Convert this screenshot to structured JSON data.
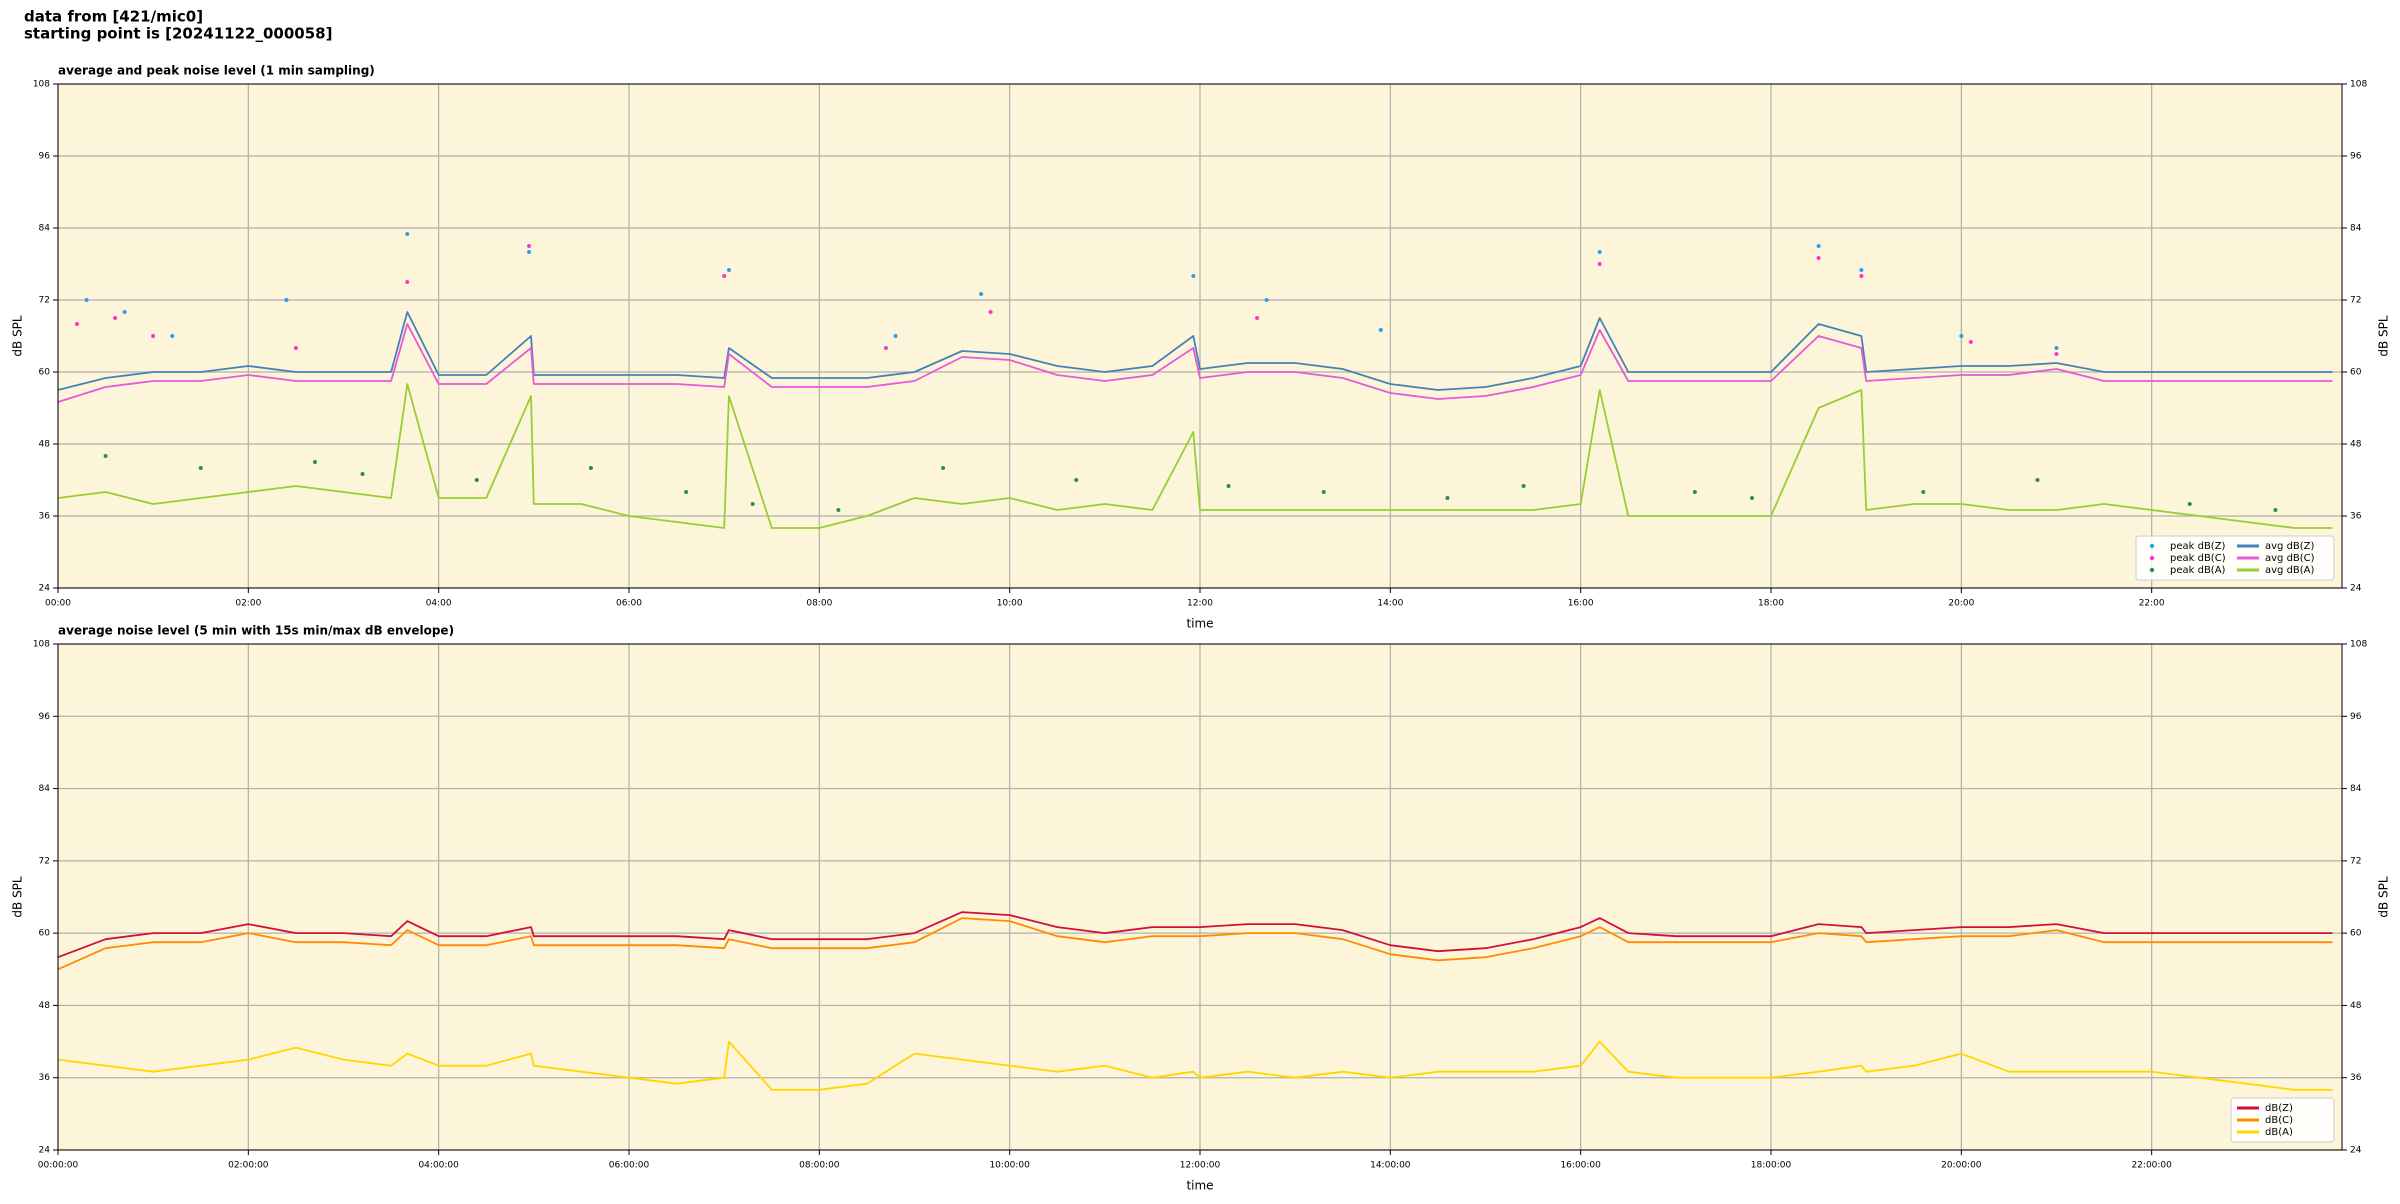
{
  "header": [
    "data from [421/mic0]",
    "starting point is [20241122_000058]"
  ],
  "chart_data": [
    {
      "type": "line",
      "title": "average and peak noise level (1 min sampling)",
      "xlabel": "time",
      "ylabel": "dB SPL",
      "xlim": [
        0,
        24
      ],
      "ylim": [
        24,
        108
      ],
      "yticks": [
        24,
        36,
        48,
        60,
        72,
        84,
        96,
        108
      ],
      "xticks": [
        {
          "value": 0,
          "label": "00:00"
        },
        {
          "value": 2,
          "label": "02:00"
        },
        {
          "value": 4,
          "label": "04:00"
        },
        {
          "value": 6,
          "label": "06:00"
        },
        {
          "value": 8,
          "label": "08:00"
        },
        {
          "value": 10,
          "label": "10:00"
        },
        {
          "value": 12,
          "label": "12:00"
        },
        {
          "value": 14,
          "label": "14:00"
        },
        {
          "value": 16,
          "label": "16:00"
        },
        {
          "value": 18,
          "label": "18:00"
        },
        {
          "value": 20,
          "label": "20:00"
        },
        {
          "value": 22,
          "label": "22:00"
        }
      ],
      "grid": true,
      "background": "#fdf5d9",
      "legend": "lower right",
      "legend_columns": 2,
      "x": [
        0,
        0.5,
        1,
        1.5,
        2,
        2.5,
        3,
        3.5,
        3.67,
        4,
        4.5,
        4.97,
        5,
        5.5,
        6,
        6.5,
        7,
        7.05,
        7.5,
        8,
        8.5,
        9,
        9.5,
        10,
        10.5,
        11,
        11.5,
        11.93,
        12,
        12.5,
        13,
        13.5,
        14,
        14.5,
        15,
        15.5,
        16,
        16.2,
        16.5,
        17,
        17.5,
        18,
        18.5,
        18.95,
        19,
        19.5,
        20,
        20.5,
        21,
        21.5,
        22,
        22.5,
        23,
        23.5,
        23.9
      ],
      "series": [
        {
          "name": "peak dB(Z)",
          "color": "#2aa0e8",
          "mode": "markers",
          "x": [
            0.3,
            0.7,
            1.2,
            2.4,
            3.67,
            4.95,
            7.05,
            8.8,
            9.7,
            11.93,
            12.7,
            13.9,
            16.2,
            18.5,
            18.95,
            20,
            21
          ],
          "values": [
            72,
            70,
            66,
            72,
            83,
            80,
            77,
            66,
            73,
            76,
            72,
            67,
            80,
            81,
            77,
            66,
            64
          ]
        },
        {
          "name": "peak dB(C)",
          "color": "#ff33cc",
          "mode": "markers",
          "x": [
            0.2,
            0.6,
            1.0,
            2.5,
            3.67,
            4.95,
            7.0,
            8.7,
            9.8,
            12.6,
            16.2,
            18.5,
            18.95,
            20.1,
            21
          ],
          "values": [
            68,
            69,
            66,
            64,
            75,
            81,
            76,
            64,
            70,
            69,
            78,
            79,
            76,
            65,
            63
          ]
        },
        {
          "name": "peak dB(A)",
          "color": "#2e8b57",
          "mode": "markers",
          "x": [
            0.5,
            1.5,
            2.7,
            3.2,
            4.4,
            5.6,
            6.6,
            7.3,
            8.2,
            9.3,
            10.7,
            12.3,
            13.3,
            14.6,
            15.4,
            17.2,
            17.8,
            19.6,
            20.8,
            22.4,
            23.3
          ],
          "values": [
            46,
            44,
            45,
            43,
            42,
            44,
            40,
            38,
            37,
            44,
            42,
            41,
            40,
            39,
            41,
            40,
            39,
            40,
            42,
            38,
            37
          ]
        },
        {
          "name": "avg dB(Z)",
          "color": "#4682b4",
          "mode": "line",
          "values": [
            57,
            59,
            60,
            60,
            61,
            60,
            60,
            60,
            70,
            59.5,
            59.5,
            66,
            59.5,
            59.5,
            59.5,
            59.5,
            59,
            64,
            59,
            59,
            59,
            60,
            63.5,
            63,
            61,
            60,
            61,
            66,
            60.5,
            61.5,
            61.5,
            60.5,
            58,
            57,
            57.5,
            59,
            61,
            69,
            60,
            60,
            60,
            60,
            68,
            66,
            60,
            60.5,
            61,
            61,
            61.5,
            60,
            60,
            60,
            60,
            60,
            60
          ]
        },
        {
          "name": "avg dB(C)",
          "color": "#e55ad9",
          "mode": "line",
          "values": [
            55,
            57.5,
            58.5,
            58.5,
            59.5,
            58.5,
            58.5,
            58.5,
            68,
            58,
            58,
            64,
            58,
            58,
            58,
            58,
            57.5,
            63,
            57.5,
            57.5,
            57.5,
            58.5,
            62.5,
            62,
            59.5,
            58.5,
            59.5,
            64,
            59,
            60,
            60,
            59,
            56.5,
            55.5,
            56,
            57.5,
            59.5,
            67,
            58.5,
            58.5,
            58.5,
            58.5,
            66,
            64,
            58.5,
            59,
            59.5,
            59.5,
            60.5,
            58.5,
            58.5,
            58.5,
            58.5,
            58.5,
            58.5
          ]
        },
        {
          "name": "avg dB(A)",
          "color": "#9acd32",
          "mode": "line",
          "values": [
            39,
            40,
            38,
            39,
            40,
            41,
            40,
            39,
            58,
            39,
            39,
            56,
            38,
            38,
            36,
            35,
            34,
            56,
            34,
            34,
            36,
            39,
            38,
            39,
            37,
            38,
            37,
            50,
            37,
            37,
            37,
            37,
            37,
            37,
            37,
            37,
            38,
            57,
            36,
            36,
            36,
            36,
            54,
            57,
            37,
            38,
            38,
            37,
            37,
            38,
            37,
            36,
            35,
            34,
            34
          ]
        }
      ]
    },
    {
      "type": "line",
      "title": "average noise level (5 min with 15s min/max dB envelope)",
      "xlabel": "time",
      "ylabel": "dB SPL",
      "xlim": [
        0,
        24
      ],
      "ylim": [
        24,
        108
      ],
      "yticks": [
        24,
        36,
        48,
        60,
        72,
        84,
        96,
        108
      ],
      "xticks": [
        {
          "value": 0,
          "label": "00:00:00"
        },
        {
          "value": 2,
          "label": "02:00:00"
        },
        {
          "value": 4,
          "label": "04:00:00"
        },
        {
          "value": 6,
          "label": "06:00:00"
        },
        {
          "value": 8,
          "label": "08:00:00"
        },
        {
          "value": 10,
          "label": "10:00:00"
        },
        {
          "value": 12,
          "label": "12:00:00"
        },
        {
          "value": 14,
          "label": "14:00:00"
        },
        {
          "value": 16,
          "label": "16:00:00"
        },
        {
          "value": 18,
          "label": "18:00:00"
        },
        {
          "value": 20,
          "label": "20:00:00"
        },
        {
          "value": 22,
          "label": "22:00:00"
        }
      ],
      "grid": true,
      "background": "#fdf5d9",
      "legend": "lower right",
      "legend_columns": 1,
      "x": [
        0,
        0.5,
        1,
        1.5,
        2,
        2.5,
        3,
        3.5,
        3.67,
        4,
        4.5,
        4.97,
        5,
        5.5,
        6,
        6.5,
        7,
        7.05,
        7.5,
        8,
        8.5,
        9,
        9.5,
        10,
        10.5,
        11,
        11.5,
        11.93,
        12,
        12.5,
        13,
        13.5,
        14,
        14.5,
        15,
        15.5,
        16,
        16.2,
        16.5,
        17,
        17.5,
        18,
        18.5,
        18.95,
        19,
        19.5,
        20,
        20.5,
        21,
        21.5,
        22,
        22.5,
        23,
        23.5,
        23.9
      ],
      "series": [
        {
          "name": "dB(Z)",
          "color": "#d0103a",
          "mode": "line",
          "values": [
            56,
            59,
            60,
            60,
            61.5,
            60,
            60,
            59.5,
            62,
            59.5,
            59.5,
            61,
            59.5,
            59.5,
            59.5,
            59.5,
            59,
            60.5,
            59,
            59,
            59,
            60,
            63.5,
            63,
            61,
            60,
            61,
            61,
            61,
            61.5,
            61.5,
            60.5,
            58,
            57,
            57.5,
            59,
            61,
            62.5,
            60,
            59.5,
            59.5,
            59.5,
            61.5,
            61,
            60,
            60.5,
            61,
            61,
            61.5,
            60,
            60,
            60,
            60,
            60,
            60
          ]
        },
        {
          "name": "dB(C)",
          "color": "#ff8c00",
          "mode": "line",
          "values": [
            54,
            57.5,
            58.5,
            58.5,
            60,
            58.5,
            58.5,
            58,
            60.5,
            58,
            58,
            59.5,
            58,
            58,
            58,
            58,
            57.5,
            59,
            57.5,
            57.5,
            57.5,
            58.5,
            62.5,
            62,
            59.5,
            58.5,
            59.5,
            59.5,
            59.5,
            60,
            60,
            59,
            56.5,
            55.5,
            56,
            57.5,
            59.5,
            61,
            58.5,
            58.5,
            58.5,
            58.5,
            60,
            59.5,
            58.5,
            59,
            59.5,
            59.5,
            60.5,
            58.5,
            58.5,
            58.5,
            58.5,
            58.5,
            58.5
          ]
        },
        {
          "name": "dB(A)",
          "color": "#ffd700",
          "mode": "line",
          "values": [
            39,
            38,
            37,
            38,
            39,
            41,
            39,
            38,
            40,
            38,
            38,
            40,
            38,
            37,
            36,
            35,
            36,
            42,
            34,
            34,
            35,
            40,
            39,
            38,
            37,
            38,
            36,
            37,
            36,
            37,
            36,
            37,
            36,
            37,
            37,
            37,
            38,
            42,
            37,
            36,
            36,
            36,
            37,
            38,
            37,
            38,
            40,
            37,
            37,
            37,
            37,
            36,
            35,
            34,
            34
          ]
        }
      ]
    }
  ]
}
